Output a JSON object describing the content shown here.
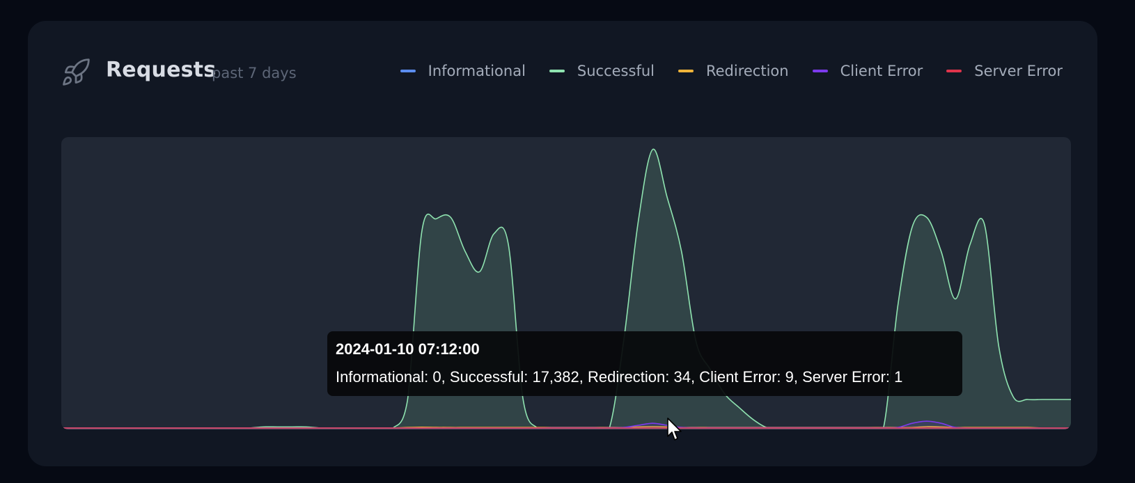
{
  "header": {
    "title": "Requests",
    "subtitle": "past 7 days",
    "icon": "rocket-icon"
  },
  "legend": [
    {
      "label": "Informational",
      "color": "#5b8def"
    },
    {
      "label": "Successful",
      "color": "#8fe3b0"
    },
    {
      "label": "Redirection",
      "color": "#f0b43a"
    },
    {
      "label": "Client Error",
      "color": "#7c3aed"
    },
    {
      "label": "Server Error",
      "color": "#e0344b"
    }
  ],
  "tooltip": {
    "title": "2024-01-10 07:12:00",
    "body": "Informational: 0, Successful: 17,382, Redirection: 34, Client Error: 9, Server Error: 1"
  },
  "chart_data": {
    "type": "area",
    "title": "Requests",
    "subtitle": "past 7 days",
    "x_index": [
      0,
      1,
      2,
      3,
      4,
      5,
      6,
      7,
      8,
      9,
      10,
      11,
      12,
      13,
      14,
      15,
      16,
      17,
      18,
      19,
      20,
      21,
      22,
      23,
      24,
      25,
      26,
      27,
      28,
      29,
      30,
      31,
      32,
      33,
      34,
      35,
      36,
      37,
      38,
      39,
      40,
      41,
      42,
      43,
      44,
      45,
      46,
      47,
      48,
      49,
      50,
      51,
      52,
      53,
      54,
      55,
      56,
      57,
      58,
      59,
      60,
      61,
      62,
      63,
      64,
      65,
      66,
      67,
      68,
      69,
      70
    ],
    "ylim": [
      0,
      21000
    ],
    "grid": false,
    "legend_position": "top-right",
    "highlight_point": {
      "label": "2024-01-10 07:12:00",
      "Informational": 0,
      "Successful": 17382,
      "Redirection": 34,
      "Client Error": 9,
      "Server Error": 1
    },
    "series": [
      {
        "name": "Successful",
        "color": "#8fe3b0",
        "values": [
          0,
          0,
          0,
          0,
          0,
          0,
          0,
          0,
          0,
          0,
          0,
          0,
          0,
          0,
          80,
          80,
          80,
          80,
          0,
          0,
          0,
          0,
          0,
          0,
          2000,
          14500,
          15400,
          15500,
          13000,
          11500,
          14300,
          13500,
          2200,
          0,
          0,
          0,
          0,
          0,
          0,
          6500,
          15200,
          20500,
          17000,
          13000,
          6400,
          4300,
          2500,
          1500,
          600,
          0,
          0,
          0,
          0,
          0,
          0,
          0,
          0,
          0,
          9000,
          14800,
          15500,
          13000,
          9500,
          13500,
          15000,
          6000,
          2300,
          2100,
          2100,
          2100,
          2100
        ],
        "id": "successful"
      },
      {
        "name": "Redirection",
        "color": "#f0b43a",
        "values": [
          0,
          0,
          0,
          0,
          0,
          0,
          0,
          0,
          0,
          0,
          0,
          0,
          0,
          0,
          0,
          0,
          0,
          0,
          0,
          0,
          0,
          0,
          0,
          0,
          40,
          60,
          50,
          40,
          40,
          40,
          40,
          40,
          40,
          40,
          40,
          40,
          40,
          40,
          40,
          40,
          80,
          100,
          80,
          40,
          40,
          40,
          40,
          40,
          40,
          40,
          40,
          40,
          40,
          40,
          40,
          40,
          40,
          40,
          40,
          40,
          100,
          80,
          40,
          40,
          40,
          40,
          40,
          40,
          0,
          0,
          0
        ]
      },
      {
        "name": "Client Error",
        "color": "#7c3aed",
        "values": [
          0,
          0,
          0,
          0,
          0,
          0,
          0,
          0,
          0,
          0,
          0,
          0,
          0,
          0,
          0,
          0,
          0,
          0,
          0,
          0,
          0,
          0,
          0,
          0,
          0,
          0,
          0,
          0,
          0,
          0,
          0,
          0,
          0,
          0,
          20,
          20,
          20,
          20,
          20,
          40,
          200,
          350,
          200,
          40,
          20,
          20,
          20,
          20,
          20,
          20,
          20,
          20,
          20,
          20,
          20,
          20,
          20,
          20,
          40,
          350,
          500,
          350,
          40,
          0,
          0,
          0,
          0,
          0,
          0,
          0,
          0
        ]
      },
      {
        "name": "Informational",
        "color": "#5b8def",
        "values": [
          0,
          0,
          0,
          0,
          0,
          0,
          0,
          0,
          0,
          0,
          0,
          0,
          0,
          0,
          0,
          0,
          0,
          0,
          0,
          0,
          0,
          0,
          0,
          0,
          0,
          0,
          0,
          0,
          0,
          0,
          0,
          0,
          0,
          0,
          0,
          0,
          0,
          0,
          0,
          0,
          0,
          0,
          0,
          0,
          0,
          0,
          0,
          0,
          0,
          0,
          0,
          0,
          0,
          0,
          0,
          0,
          0,
          0,
          0,
          0,
          0,
          0,
          0,
          0,
          0,
          0,
          0,
          0,
          0,
          0,
          0
        ]
      },
      {
        "name": "Server Error",
        "color": "#e0344b",
        "values": [
          0,
          0,
          0,
          0,
          0,
          0,
          0,
          0,
          0,
          0,
          0,
          0,
          0,
          0,
          0,
          0,
          0,
          0,
          0,
          0,
          0,
          0,
          0,
          0,
          0,
          0,
          0,
          0,
          0,
          0,
          0,
          0,
          0,
          0,
          0,
          0,
          0,
          0,
          0,
          0,
          0,
          0,
          0,
          0,
          0,
          0,
          0,
          0,
          0,
          0,
          0,
          0,
          0,
          0,
          0,
          0,
          0,
          0,
          0,
          0,
          0,
          0,
          0,
          0,
          0,
          0,
          0,
          0,
          0,
          0,
          0
        ]
      }
    ]
  }
}
